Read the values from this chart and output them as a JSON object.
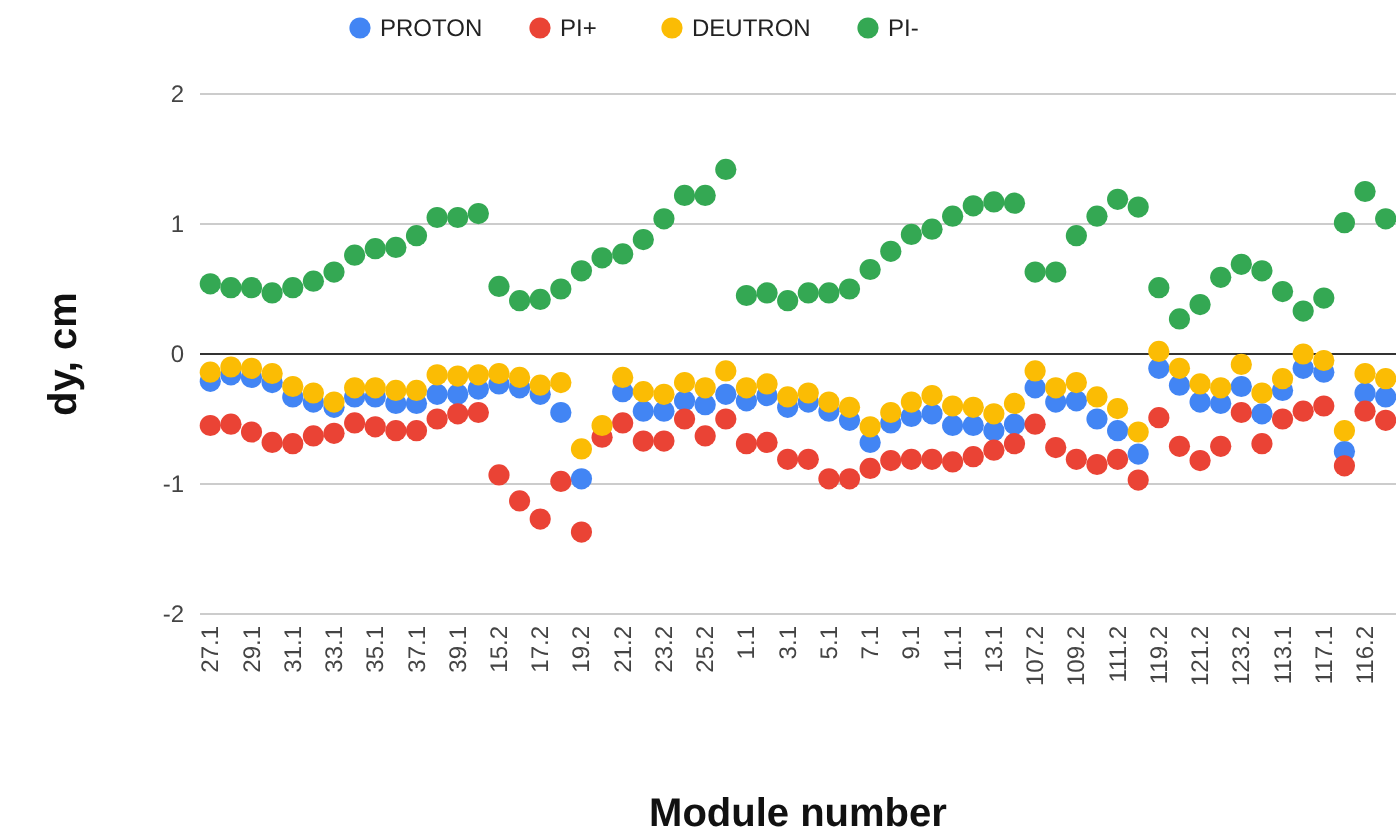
{
  "chart_data": {
    "type": "scatter",
    "xlabel": "Module number",
    "ylabel": "dy, cm",
    "categories": [
      "27.1",
      null,
      "29.1",
      null,
      "31.1",
      null,
      "33.1",
      null,
      "35.1",
      null,
      "37.1",
      null,
      "39.1",
      null,
      "15.2",
      null,
      "17.2",
      null,
      "19.2",
      null,
      "21.2",
      null,
      "23.2",
      null,
      "25.2",
      null,
      "1.1",
      null,
      "3.1",
      null,
      "5.1",
      null,
      "7.1",
      null,
      "9.1",
      null,
      "11.1",
      null,
      "13.1",
      null,
      "107.2",
      null,
      "109.2",
      null,
      "111.2",
      null,
      "119.2",
      null,
      "121.2",
      null,
      "123.2",
      null,
      "113.1",
      null,
      "117.1",
      null,
      "116.2",
      null
    ],
    "series": [
      {
        "name": "PROTON",
        "color": "#4285f4",
        "values": [
          -0.21,
          -0.16,
          -0.18,
          -0.22,
          -0.33,
          -0.37,
          -0.41,
          -0.33,
          -0.33,
          -0.38,
          -0.38,
          -0.31,
          -0.31,
          -0.27,
          -0.23,
          -0.26,
          -0.31,
          -0.45,
          -0.96,
          null,
          -0.29,
          -0.44,
          -0.44,
          -0.36,
          -0.39,
          -0.31,
          -0.36,
          -0.32,
          -0.41,
          -0.37,
          -0.44,
          -0.51,
          -0.68,
          -0.53,
          -0.48,
          -0.46,
          -0.55,
          -0.55,
          -0.59,
          -0.54,
          -0.26,
          -0.37,
          -0.36,
          -0.5,
          -0.59,
          -0.77,
          -0.11,
          -0.24,
          -0.37,
          -0.38,
          -0.25,
          -0.46,
          -0.28,
          -0.11,
          -0.14,
          -0.75,
          -0.3,
          -0.33
        ]
      },
      {
        "name": "PI+",
        "color": "#ea4335",
        "values": [
          -0.55,
          -0.54,
          -0.6,
          -0.68,
          -0.69,
          -0.63,
          -0.61,
          -0.53,
          -0.56,
          -0.59,
          -0.59,
          -0.5,
          -0.46,
          -0.45,
          -0.93,
          -1.13,
          -1.27,
          -0.98,
          -1.37,
          -0.64,
          -0.53,
          -0.67,
          -0.67,
          -0.5,
          -0.63,
          -0.5,
          -0.69,
          -0.68,
          -0.81,
          -0.81,
          -0.96,
          -0.96,
          -0.88,
          -0.82,
          -0.81,
          -0.81,
          -0.83,
          -0.79,
          -0.74,
          -0.69,
          -0.54,
          -0.72,
          -0.81,
          -0.85,
          -0.81,
          -0.97,
          -0.49,
          -0.71,
          -0.82,
          -0.71,
          -0.45,
          -0.69,
          -0.5,
          -0.44,
          -0.4,
          -0.86,
          -0.44,
          -0.51
        ]
      },
      {
        "name": "DEUTRON",
        "color": "#fbbc04",
        "values": [
          -0.14,
          -0.1,
          -0.11,
          -0.15,
          -0.25,
          -0.3,
          -0.37,
          -0.26,
          -0.26,
          -0.28,
          -0.28,
          -0.16,
          -0.17,
          -0.16,
          -0.15,
          -0.18,
          -0.24,
          -0.22,
          -0.73,
          -0.55,
          -0.18,
          -0.29,
          -0.31,
          -0.22,
          -0.26,
          -0.13,
          -0.26,
          -0.23,
          -0.33,
          -0.3,
          -0.37,
          -0.41,
          -0.56,
          -0.45,
          -0.37,
          -0.32,
          -0.4,
          -0.41,
          -0.46,
          -0.38,
          -0.13,
          -0.26,
          -0.22,
          -0.33,
          -0.42,
          -0.6,
          0.02,
          -0.11,
          -0.23,
          -0.26,
          -0.08,
          -0.3,
          -0.19,
          0,
          -0.05,
          -0.59,
          -0.15,
          -0.19
        ]
      },
      {
        "name": "PI-",
        "color": "#34a853",
        "values": [
          0.54,
          0.51,
          0.51,
          0.47,
          0.51,
          0.56,
          0.63,
          0.76,
          0.81,
          0.82,
          0.91,
          1.05,
          1.05,
          1.08,
          0.52,
          0.41,
          0.42,
          0.5,
          0.64,
          0.74,
          0.77,
          0.88,
          1.04,
          1.22,
          1.22,
          1.42,
          0.45,
          0.47,
          0.41,
          0.47,
          0.47,
          0.5,
          0.65,
          0.79,
          0.92,
          0.96,
          1.06,
          1.14,
          1.17,
          1.16,
          0.63,
          0.63,
          0.91,
          1.06,
          1.19,
          1.13,
          0.51,
          0.27,
          0.38,
          0.59,
          0.69,
          0.64,
          0.48,
          0.33,
          0.43,
          1.01,
          1.25,
          1.04
        ]
      }
    ],
    "ylim": [
      -2,
      2
    ],
    "yticks": [
      -2,
      -1,
      0,
      1,
      2
    ],
    "grid": "y",
    "legend": "top",
    "marker": "circle"
  }
}
